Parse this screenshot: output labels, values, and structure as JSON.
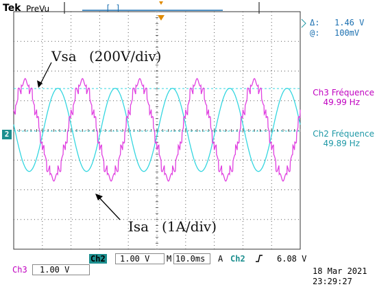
{
  "header": {
    "brand": "Tek",
    "mode": "PreVu",
    "trigger_bracket": "[ ]"
  },
  "cursor": {
    "delta_label": "Δ:",
    "delta_value": "1.46 V",
    "at_label": "@:",
    "at_value": "100mV"
  },
  "measurements": {
    "ch3_label": "Ch3 Fréquence",
    "ch3_value": "49.99 Hz",
    "ch2_label": "Ch2 Fréquence",
    "ch2_value": "49.89 Hz"
  },
  "annotations": {
    "vsa": "Vsa",
    "vsa_scale": "(200V/div)",
    "isa": "Isa",
    "isa_scale": "(1A/div)"
  },
  "markers": {
    "ch2_marker": "2"
  },
  "bottom": {
    "ch2_label": "Ch2",
    "ch2_scale": "1.00 V",
    "timebase_prefix": "M",
    "timebase": "10.0ms",
    "acq_mode": "A",
    "trig_source": "Ch2",
    "trig_slope_icon": "rising-edge-icon",
    "trig_level": "6.08 V",
    "ch3_label": "Ch3",
    "ch3_scale": "1.00 V",
    "date": "18 Mar 2021",
    "time": "23:29:27"
  },
  "chart_data": {
    "type": "line",
    "xlabel": "",
    "ylabel": "",
    "x_range_div": [
      0,
      10
    ],
    "y_range_div": [
      -4,
      4
    ],
    "grid": true,
    "series": [
      {
        "name": "Ch2",
        "color": "#33d6e0",
        "type": "sinusoid",
        "frequency_hz": 49.89,
        "amplitude_div": 1.4,
        "offset_div": 0.02,
        "phase_div": 0.48,
        "cycles_on_screen": 5
      },
      {
        "name": "Ch3",
        "color": "#e040e0",
        "type": "stepped-sinusoid",
        "frequency_hz": 49.99,
        "amplitude_div": 1.6,
        "offset_div": 0.02,
        "phase_div": 0.05,
        "cycles_on_screen": 5
      }
    ]
  },
  "colors": {
    "grid": "#555555",
    "ch2": "#33d6e0",
    "ch3": "#e040e0",
    "badge": "#1d8f8f",
    "trigger_marker": "#e08a00"
  }
}
